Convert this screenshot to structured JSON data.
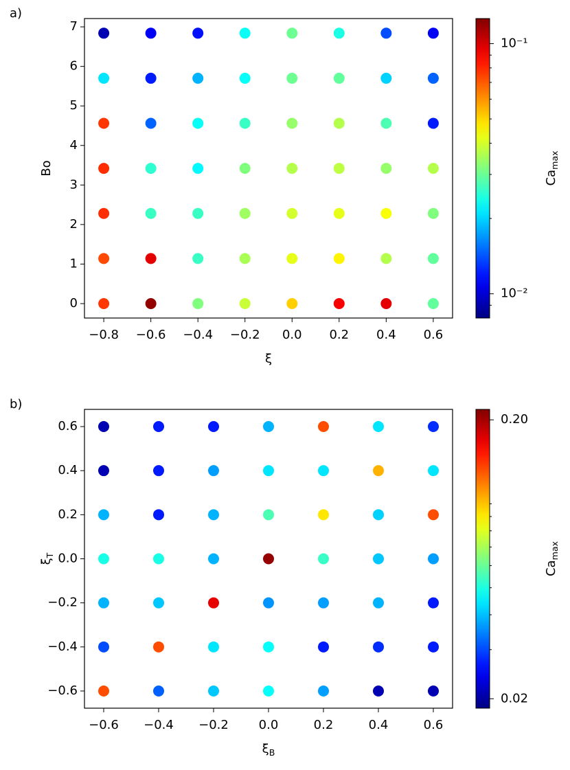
{
  "chart_data": [
    {
      "type": "scatter",
      "label": "a)",
      "xlabel": "ξ",
      "ylabel": "Bo",
      "colorbar_label": {
        "text": "Ca",
        "sub": "max"
      },
      "colormap": "jet",
      "color_scale": "log",
      "x": [
        -0.8,
        -0.6,
        -0.4,
        -0.2,
        0,
        0.2,
        0.4,
        0.6,
        -0.8,
        -0.6,
        -0.4,
        -0.2,
        0,
        0.2,
        0.4,
        0.6,
        -0.8,
        -0.6,
        -0.4,
        -0.2,
        0,
        0.2,
        0.4,
        0.6,
        -0.8,
        -0.6,
        -0.4,
        -0.2,
        0,
        0.2,
        0.4,
        0.6,
        -0.8,
        -0.6,
        -0.4,
        -0.2,
        0,
        0.2,
        0.4,
        0.6,
        -0.8,
        -0.6,
        -0.4,
        -0.2,
        0,
        0.2,
        0.4,
        0.6,
        -0.8,
        -0.6,
        -0.4,
        -0.2,
        0,
        0.2,
        0.4,
        0.6
      ],
      "y": [
        6.84,
        6.84,
        6.84,
        6.84,
        6.84,
        6.84,
        6.84,
        6.84,
        5.7,
        5.7,
        5.7,
        5.7,
        5.7,
        5.7,
        5.7,
        5.7,
        4.56,
        4.56,
        4.56,
        4.56,
        4.56,
        4.56,
        4.56,
        4.56,
        3.42,
        3.42,
        3.42,
        3.42,
        3.42,
        3.42,
        3.42,
        3.42,
        2.28,
        2.28,
        2.28,
        2.28,
        2.28,
        2.28,
        2.28,
        2.28,
        1.14,
        1.14,
        1.14,
        1.14,
        1.14,
        1.14,
        1.14,
        1.14,
        0,
        0,
        0,
        0,
        0,
        0,
        0,
        0
      ],
      "c": [
        0.0092,
        0.0111,
        0.0118,
        0.0229,
        0.0302,
        0.0242,
        0.0139,
        0.0111,
        0.021,
        0.0121,
        0.0183,
        0.0229,
        0.0302,
        0.0293,
        0.0199,
        0.0147,
        0.077,
        0.0147,
        0.0229,
        0.0263,
        0.0337,
        0.0366,
        0.0277,
        0.0121,
        0.079,
        0.0255,
        0.0222,
        0.0318,
        0.0366,
        0.0376,
        0.0337,
        0.0366,
        0.079,
        0.0263,
        0.0263,
        0.0346,
        0.0397,
        0.042,
        0.044,
        0.0318,
        0.073,
        0.096,
        0.0263,
        0.0356,
        0.042,
        0.046,
        0.0366,
        0.0293,
        0.077,
        0.12,
        0.0318,
        0.0386,
        0.051,
        0.091,
        0.096,
        0.0293
      ],
      "clim": [
        0.008,
        0.126
      ],
      "cticks": [
        {
          "value": 0.01,
          "label": "10⁻²"
        },
        {
          "value": 0.1,
          "label": "10⁻¹"
        }
      ],
      "cminorticks": [
        0.009,
        0.02,
        0.03,
        0.04,
        0.05,
        0.06,
        0.07,
        0.08,
        0.09
      ],
      "xlim": [
        -0.882,
        0.682
      ],
      "ylim": [
        -0.365,
        7.21
      ],
      "xticks": [
        {
          "value": -0.8,
          "label": "−0.8"
        },
        {
          "value": -0.6,
          "label": "−0.6"
        },
        {
          "value": -0.4,
          "label": "−0.4"
        },
        {
          "value": -0.2,
          "label": "−0.2"
        },
        {
          "value": 0,
          "label": "0.0"
        },
        0.2,
        0.4,
        0.6
      ],
      "yticks": [
        0,
        1,
        2,
        3,
        4,
        5,
        6,
        7
      ]
    },
    {
      "type": "scatter",
      "label": "b)",
      "xlabel": {
        "text": "ξ",
        "sub": "B"
      },
      "ylabel": {
        "text": "ξ",
        "sub": "T"
      },
      "colorbar_label": {
        "text": "Ca",
        "sub": "max"
      },
      "colormap": "jet",
      "color_scale": "log",
      "x": [
        -0.6,
        -0.4,
        -0.2,
        0,
        0.2,
        0.4,
        0.6,
        -0.6,
        -0.4,
        -0.2,
        0,
        0.2,
        0.4,
        0.6,
        -0.6,
        -0.4,
        -0.2,
        0,
        0.2,
        0.4,
        0.6,
        -0.6,
        -0.4,
        -0.2,
        0,
        0.2,
        0.4,
        0.6,
        -0.6,
        -0.4,
        -0.2,
        0,
        0.2,
        0.4,
        0.6,
        -0.6,
        -0.4,
        -0.2,
        0,
        0.2,
        0.4,
        0.6,
        -0.6,
        -0.4,
        -0.2,
        0,
        0.2,
        0.4,
        0.6
      ],
      "y": [
        0.6,
        0.6,
        0.6,
        0.6,
        0.6,
        0.6,
        0.6,
        0.4,
        0.4,
        0.4,
        0.4,
        0.4,
        0.4,
        0.4,
        0.2,
        0.2,
        0.2,
        0.2,
        0.2,
        0.2,
        0.2,
        0,
        0,
        0,
        0,
        0,
        0,
        0,
        -0.2,
        -0.2,
        -0.2,
        -0.2,
        -0.2,
        -0.2,
        -0.2,
        -0.4,
        -0.4,
        -0.4,
        -0.4,
        -0.4,
        -0.4,
        -0.4,
        -0.6,
        -0.6,
        -0.6,
        -0.6,
        -0.6,
        -0.6,
        -0.6
      ],
      "c": [
        0.0209,
        0.0268,
        0.0268,
        0.0388,
        0.133,
        0.0439,
        0.0281,
        0.0209,
        0.0268,
        0.0369,
        0.0439,
        0.0439,
        0.104,
        0.0439,
        0.0388,
        0.0268,
        0.0388,
        0.0561,
        0.0917,
        0.0418,
        0.133,
        0.0496,
        0.0496,
        0.0388,
        0.207,
        0.0535,
        0.0407,
        0.0369,
        0.0388,
        0.0407,
        0.17,
        0.036,
        0.0369,
        0.0388,
        0.0268,
        0.0303,
        0.133,
        0.0439,
        0.0472,
        0.0268,
        0.0281,
        0.0268,
        0.133,
        0.0318,
        0.0407,
        0.0472,
        0.0369,
        0.0209,
        0.0209
      ],
      "clim": [
        0.0185,
        0.218
      ],
      "cticks": [
        {
          "value": 0.02,
          "label": "0.02"
        },
        {
          "value": 0.2,
          "label": "0.20"
        }
      ],
      "cminorticks": [
        0.03,
        0.04,
        0.05,
        0.06,
        0.07,
        0.08,
        0.09,
        0.1
      ],
      "xlim": [
        -0.67,
        0.67
      ],
      "ylim": [
        -0.678,
        0.678
      ],
      "xticks": [
        {
          "value": -0.6,
          "label": "−0.6"
        },
        {
          "value": -0.4,
          "label": "−0.4"
        },
        {
          "value": -0.2,
          "label": "−0.2"
        },
        {
          "value": 0,
          "label": "0.0"
        },
        0.2,
        0.4,
        0.6
      ],
      "yticks": [
        {
          "value": -0.6,
          "label": "−0.6"
        },
        {
          "value": -0.4,
          "label": "−0.4"
        },
        {
          "value": -0.2,
          "label": "−0.2"
        },
        {
          "value": 0,
          "label": "0.0"
        },
        0.2,
        0.4,
        0.6
      ]
    }
  ]
}
